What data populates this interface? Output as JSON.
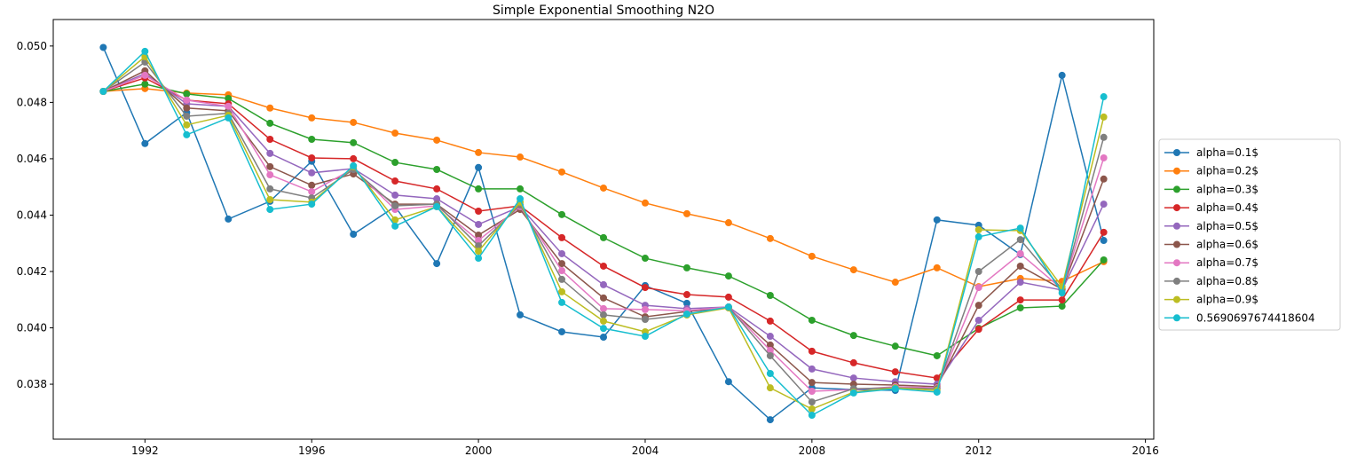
{
  "chart_data": {
    "type": "line",
    "title": "Simple Exponential Smoothing N2O",
    "x": [
      1991,
      1992,
      1993,
      1994,
      1995,
      1996,
      1997,
      1998,
      1999,
      2000,
      2001,
      2002,
      2003,
      2004,
      2005,
      2006,
      2007,
      2008,
      2009,
      2010,
      2011,
      2012,
      2013,
      2014,
      2015
    ],
    "xlim": [
      1989.8,
      2016.2
    ],
    "xticks": [
      1992,
      1996,
      2000,
      2004,
      2008,
      2012,
      2016
    ],
    "ylim": [
      0.03605,
      0.05094
    ],
    "yticks": [
      0.038,
      {
        "value": 0.04,
        "label": "0.040"
      },
      0.042,
      0.044,
      0.046,
      0.048,
      {
        "value": 0.05,
        "label": "0.050"
      }
    ],
    "legend": "right-outside",
    "series": [
      {
        "name": "alpha=0.1$",
        "color": "#1f77b4",
        "values": [
          0.04995,
          0.04654,
          0.04764,
          0.04386,
          0.04449,
          0.04591,
          0.04332,
          0.0443,
          0.04228,
          0.04569,
          0.04046,
          0.03986,
          0.03967,
          0.0415,
          0.04087,
          0.03809,
          0.03674,
          0.03787,
          0.03781,
          0.03778,
          0.04383,
          0.04364,
          0.0426,
          0.04896,
          0.0431
        ]
      },
      {
        "name": "alpha=0.2$",
        "color": "#ff7f0e",
        "values": [
          0.04839,
          0.04849,
          0.04833,
          0.04827,
          0.0478,
          0.04745,
          0.04729,
          0.04691,
          0.04666,
          0.04622,
          0.04606,
          0.04553,
          0.04496,
          0.04443,
          0.04405,
          0.04373,
          0.04317,
          0.04254,
          0.04206,
          0.04162,
          0.04213,
          0.04146,
          0.04175,
          0.04165,
          0.04235
        ]
      },
      {
        "name": "alpha=0.3$",
        "color": "#2ca02c",
        "values": [
          0.04839,
          0.04865,
          0.0483,
          0.04814,
          0.04726,
          0.04669,
          0.04657,
          0.04587,
          0.04562,
          0.04493,
          0.04493,
          0.04402,
          0.0432,
          0.04247,
          0.04213,
          0.04184,
          0.04115,
          0.04027,
          0.03973,
          0.03935,
          0.03901,
          0.03998,
          0.04071,
          0.04077,
          0.04241
        ]
      },
      {
        "name": "alpha=0.4$",
        "color": "#d62728",
        "values": [
          0.04839,
          0.04887,
          0.04808,
          0.04795,
          0.04669,
          0.04603,
          0.046,
          0.04521,
          0.04493,
          0.04414,
          0.04433,
          0.0432,
          0.04219,
          0.04143,
          0.04118,
          0.04109,
          0.04024,
          0.03917,
          0.03876,
          0.03844,
          0.03822,
          0.03995,
          0.04099,
          0.04099,
          0.04339
        ]
      },
      {
        "name": "alpha=0.5$",
        "color": "#9467bd",
        "values": [
          0.04839,
          0.04902,
          0.04795,
          0.04786,
          0.04619,
          0.0455,
          0.04565,
          0.04471,
          0.04458,
          0.04367,
          0.0443,
          0.04263,
          0.04153,
          0.0408,
          0.04068,
          0.04074,
          0.0397,
          0.03854,
          0.03822,
          0.03809,
          0.038,
          0.04027,
          0.04162,
          0.04134,
          0.04439
        ]
      },
      {
        "name": "alpha=0.6$",
        "color": "#8c564b",
        "values": [
          0.04839,
          0.04912,
          0.0478,
          0.0477,
          0.04572,
          0.04506,
          0.04546,
          0.04439,
          0.04439,
          0.04329,
          0.0442,
          0.04228,
          0.04106,
          0.04039,
          0.04058,
          0.04071,
          0.03939,
          0.03806,
          0.038,
          0.03797,
          0.03791,
          0.0408,
          0.04219,
          0.04137,
          0.04528
        ]
      },
      {
        "name": "alpha=0.7$",
        "color": "#e377c2",
        "values": [
          0.04839,
          0.04896,
          0.04808,
          0.04786,
          0.04543,
          0.04483,
          0.04565,
          0.0442,
          0.04433,
          0.0431,
          0.0443,
          0.04203,
          0.04068,
          0.04065,
          0.04061,
          0.04074,
          0.0392,
          0.03775,
          0.03781,
          0.03791,
          0.03787,
          0.04143,
          0.04263,
          0.04137,
          0.04603
        ]
      },
      {
        "name": "alpha=0.8$",
        "color": "#7f7f7f",
        "values": [
          0.04839,
          0.04943,
          0.04751,
          0.04761,
          0.04493,
          0.04461,
          0.04562,
          0.04433,
          0.04439,
          0.04291,
          0.04436,
          0.04172,
          0.04046,
          0.0403,
          0.04046,
          0.04074,
          0.03901,
          0.03737,
          0.03784,
          0.03787,
          0.03784,
          0.042,
          0.04313,
          0.04137,
          0.04676
        ]
      },
      {
        "name": "alpha=0.9$",
        "color": "#bcbd22",
        "values": [
          0.04839,
          0.04962,
          0.0472,
          0.04754,
          0.04455,
          0.04446,
          0.04572,
          0.04383,
          0.0443,
          0.04272,
          0.04446,
          0.04128,
          0.04024,
          0.03986,
          0.04046,
          0.04071,
          0.03787,
          0.03712,
          0.03772,
          0.03787,
          0.03778,
          0.04348,
          0.04345,
          0.04146,
          0.04748
        ]
      },
      {
        "name": "0.5690697674418604",
        "color": "#17becf",
        "values": [
          0.04839,
          0.04981,
          0.04685,
          0.04745,
          0.0442,
          0.04439,
          0.04575,
          0.04361,
          0.0443,
          0.04247,
          0.04458,
          0.0409,
          0.03998,
          0.0397,
          0.04049,
          0.04074,
          0.03838,
          0.0369,
          0.03769,
          0.03784,
          0.03772,
          0.04323,
          0.04354,
          0.04124,
          0.0482
        ]
      }
    ]
  }
}
